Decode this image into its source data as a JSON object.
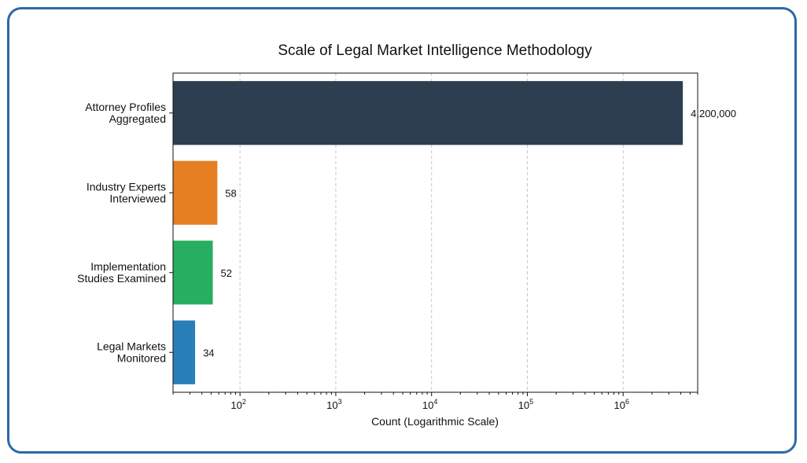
{
  "chart_data": {
    "type": "bar",
    "orientation": "horizontal",
    "title": "Scale of Legal Market Intelligence Methodology",
    "xlabel": "Count (Logarithmic Scale)",
    "ylabel": "",
    "xscale": "log",
    "xlim": [
      20,
      6000000
    ],
    "grid": "x-dashed",
    "categories": [
      [
        "Attorney Profiles",
        "Aggregated"
      ],
      [
        "Industry Experts",
        "Interviewed"
      ],
      [
        "Implementation",
        "Studies Examined"
      ],
      [
        "Legal Markets",
        "Monitored"
      ]
    ],
    "values": [
      4200000,
      58,
      52,
      34
    ],
    "value_labels": [
      "4,200,000",
      "58",
      "52",
      "34"
    ],
    "colors": [
      "#2c3e50",
      "#e67e22",
      "#27ae60",
      "#2980b9"
    ],
    "x_ticks": [
      {
        "value": 100,
        "base": "10",
        "exp": "2"
      },
      {
        "value": 1000,
        "base": "10",
        "exp": "3"
      },
      {
        "value": 10000,
        "base": "10",
        "exp": "4"
      },
      {
        "value": 100000,
        "base": "10",
        "exp": "5"
      },
      {
        "value": 1000000,
        "base": "10",
        "exp": "6"
      }
    ]
  }
}
